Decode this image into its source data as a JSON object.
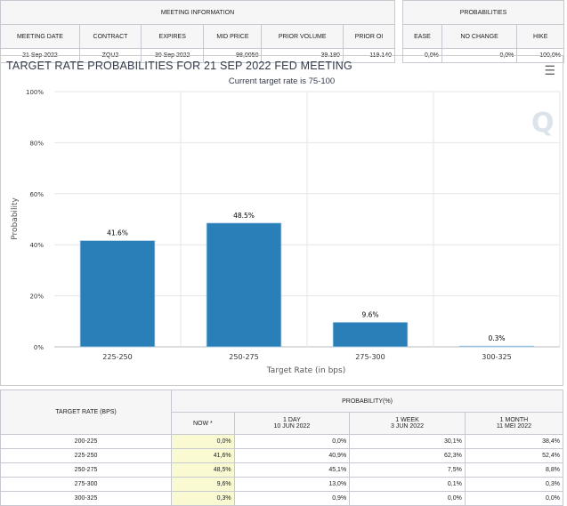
{
  "meeting_info": {
    "title": "MEETING INFORMATION",
    "headers": [
      "MEETING DATE",
      "CONTRACT",
      "EXPIRES",
      "MID PRICE",
      "PRIOR VOLUME",
      "PRIOR OI"
    ],
    "values": [
      "21 Sep 2022",
      "ZQU2",
      "30 Sep 2022",
      "98,0050",
      "39.180",
      "119.140"
    ]
  },
  "probabilities": {
    "title": "PROBABILITIES",
    "headers": [
      "EASE",
      "NO CHANGE",
      "HIKE"
    ],
    "values": [
      "0,0%",
      "0,0%",
      "100,0%"
    ]
  },
  "chart_panel": {
    "menu_icon": "hamburger-icon"
  },
  "chart_data": {
    "type": "bar",
    "title": "TARGET RATE PROBABILITIES FOR 21 SEP 2022 FED MEETING",
    "subtitle": "Current target rate is 75-100",
    "xlabel": "Target Rate (in bps)",
    "ylabel": "Probability",
    "categories": [
      "225-250",
      "250-275",
      "275-300",
      "300-325"
    ],
    "values": [
      41.6,
      48.5,
      9.6,
      0.3
    ],
    "data_labels": [
      "41.6%",
      "48.5%",
      "9.6%",
      "0.3%"
    ],
    "ylim": [
      0,
      100
    ],
    "yticks": [
      "0%",
      "20%",
      "40%",
      "60%",
      "80%",
      "100%"
    ],
    "grid": true,
    "color": "#2b7fb8"
  },
  "bottom_table": {
    "rate_header": "TARGET RATE (BPS)",
    "prob_header": "PROBABILITY(%)",
    "columns": [
      {
        "l1": "NOW *",
        "l2": ""
      },
      {
        "l1": "1 DAY",
        "l2": "10 JUN 2022"
      },
      {
        "l1": "1 WEEK",
        "l2": "3 JUN 2022"
      },
      {
        "l1": "1 MONTH",
        "l2": "11 MEI 2022"
      }
    ],
    "rows": [
      {
        "rate": "200-225",
        "v": [
          "0,0%",
          "0,0%",
          "30,1%",
          "38,4%"
        ]
      },
      {
        "rate": "225-250",
        "v": [
          "41,6%",
          "40,9%",
          "62,3%",
          "52,4%"
        ]
      },
      {
        "rate": "250-275",
        "v": [
          "48,5%",
          "45,1%",
          "7,5%",
          "8,8%"
        ]
      },
      {
        "rate": "275-300",
        "v": [
          "9,6%",
          "13,0%",
          "0,1%",
          "0,3%"
        ]
      },
      {
        "rate": "300-325",
        "v": [
          "0,3%",
          "0,9%",
          "0,0%",
          "0,0%"
        ]
      }
    ]
  }
}
